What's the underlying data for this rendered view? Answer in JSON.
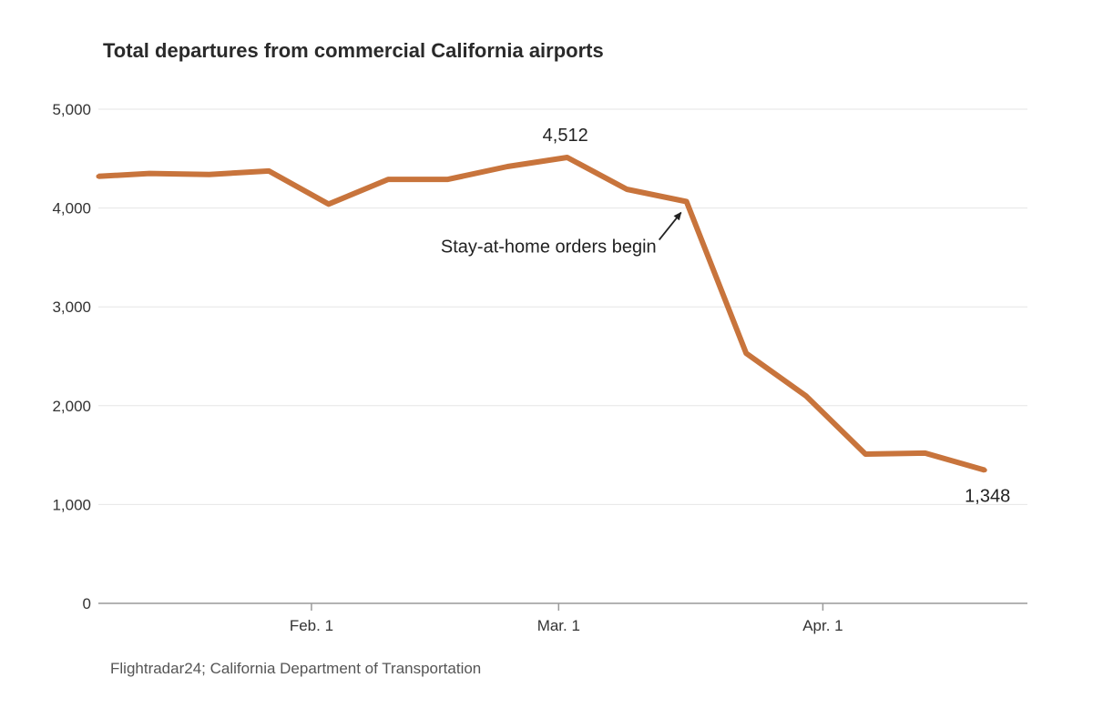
{
  "chart_data": {
    "type": "line",
    "title": "Total departures from commercial California airports",
    "xlabel": "",
    "ylabel": "",
    "ylim": [
      0,
      5000
    ],
    "y_ticks": [
      0,
      1000,
      2000,
      3000,
      4000,
      5000
    ],
    "y_tick_labels": [
      "0",
      "1,000",
      "2,000",
      "3,000",
      "4,000",
      "5,000"
    ],
    "x_ticks": [
      {
        "date": "2020-02-01",
        "label": "Feb. 1"
      },
      {
        "date": "2020-03-01",
        "label": "Mar. 1"
      },
      {
        "date": "2020-04-01",
        "label": "Apr. 1"
      }
    ],
    "xlim": [
      "2020-01-07",
      "2020-04-25"
    ],
    "grid": "horizontal",
    "color": "#c8743c",
    "series": [
      {
        "points": [
          {
            "x": "2020-01-07",
            "y": 4320
          },
          {
            "x": "2020-01-13",
            "y": 4350
          },
          {
            "x": "2020-01-20",
            "y": 4340
          },
          {
            "x": "2020-01-27",
            "y": 4375
          },
          {
            "x": "2020-02-03",
            "y": 4040
          },
          {
            "x": "2020-02-10",
            "y": 4290
          },
          {
            "x": "2020-02-17",
            "y": 4290
          },
          {
            "x": "2020-02-24",
            "y": 4420
          },
          {
            "x": "2020-03-02",
            "y": 4512
          },
          {
            "x": "2020-03-09",
            "y": 4190
          },
          {
            "x": "2020-03-16",
            "y": 4065
          },
          {
            "x": "2020-03-23",
            "y": 2530
          },
          {
            "x": "2020-03-30",
            "y": 2100
          },
          {
            "x": "2020-04-06",
            "y": 1510
          },
          {
            "x": "2020-04-13",
            "y": 1520
          },
          {
            "x": "2020-04-20",
            "y": 1348
          }
        ]
      }
    ],
    "data_labels": [
      {
        "x": "2020-03-02",
        "y": 4512,
        "text": "4,512"
      },
      {
        "x": "2020-04-20",
        "y": 1348,
        "text": "1,348"
      }
    ],
    "annotations": [
      {
        "text": "Stay-at-home orders begin",
        "x": "2020-03-16",
        "y": 4065
      }
    ],
    "source": "Flightradar24; California Department of Transportation"
  }
}
